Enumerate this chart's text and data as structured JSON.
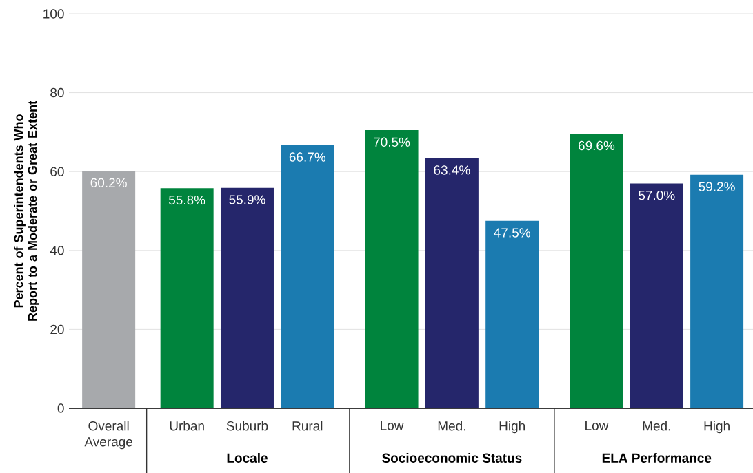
{
  "chart_data": {
    "type": "bar",
    "ylabel": "Percent of Superintendents Who Report to a Moderate or Great Extent",
    "categories": [
      "Overall Average",
      "Urban",
      "Suburb",
      "Rural",
      "Low",
      "Med.",
      "High",
      "Low",
      "Med.",
      "High"
    ],
    "values": [
      60.2,
      55.8,
      55.9,
      66.7,
      70.5,
      63.4,
      47.5,
      69.6,
      57.0,
      59.2
    ],
    "value_labels": [
      "60.2%",
      "55.8%",
      "55.9%",
      "66.7%",
      "70.5%",
      "63.4%",
      "47.5%",
      "69.6%",
      "57.0%",
      "59.2%"
    ],
    "colors": [
      "#a7a9ac",
      "#00843d",
      "#25266b",
      "#1b7bb0",
      "#00843d",
      "#25266b",
      "#1b7bb0",
      "#00843d",
      "#25266b",
      "#1b7bb0"
    ],
    "annotations": [
      "Locale",
      "Socioeconomic Status",
      "ELA Performance"
    ],
    "ylim": [
      0,
      100
    ],
    "yticks": [
      0,
      20,
      40,
      60,
      80,
      100
    ],
    "grid": "y"
  }
}
